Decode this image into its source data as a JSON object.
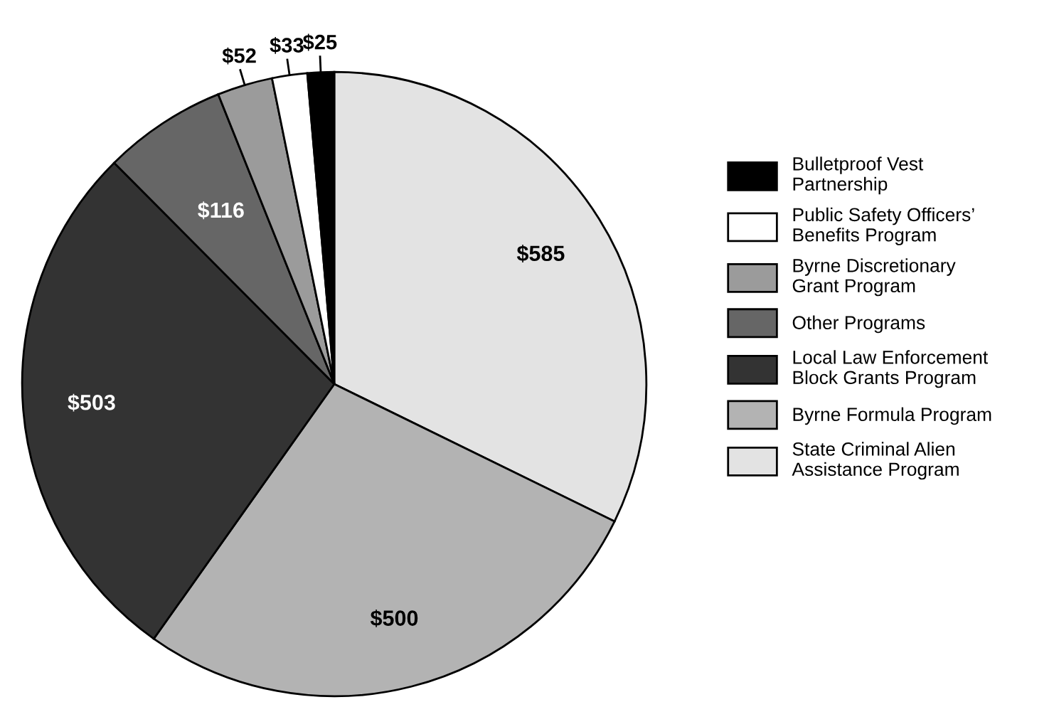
{
  "chart_data": {
    "type": "pie",
    "categories": [
      "State Criminal Alien\nAssistance Program",
      "Byrne Formula Program",
      "Local Law Enforcement\nBlock Grants Program",
      "Other Programs",
      "Byrne Discretionary\nGrant Program",
      "Public Safety Officers’\nBenefits Program",
      "Bulletproof Vest\nPartnership"
    ],
    "values": [
      585,
      500,
      503,
      116,
      52,
      33,
      25
    ],
    "value_labels": [
      "$585",
      "$500",
      "$503",
      "$116",
      "$52",
      "$33",
      "$25"
    ],
    "colors": [
      "#e3e3e3",
      "#b3b3b3",
      "#333333",
      "#666666",
      "#9b9b9b",
      "#ffffff",
      "#000000"
    ],
    "legend": "right"
  }
}
